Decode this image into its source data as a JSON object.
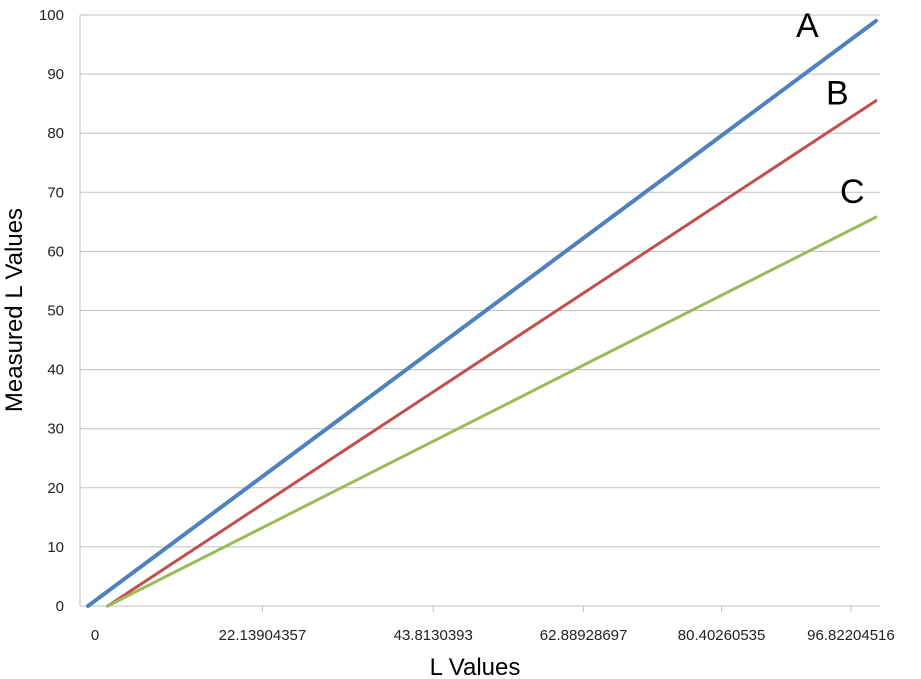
{
  "chart_data": {
    "type": "line",
    "xlabel": "L Values",
    "ylabel": "Measured L Values",
    "ylim": [
      0,
      100
    ],
    "yticks": [
      0,
      10,
      20,
      30,
      40,
      50,
      60,
      70,
      80,
      90,
      100
    ],
    "xlim": [
      0,
      100
    ],
    "xticks": [
      {
        "value": 0,
        "label": "0"
      },
      {
        "value": 22.13904357,
        "label": "22.13904357"
      },
      {
        "value": 43.8130393,
        "label": "43.8130393"
      },
      {
        "value": 62.88928697,
        "label": "62.88928697"
      },
      {
        "value": 80.40260535,
        "label": "80.40260535"
      },
      {
        "value": 96.82204516,
        "label": "96.82204516"
      }
    ],
    "grid": "horizontal",
    "legend": "none",
    "series": [
      {
        "name": "A",
        "color": "#4F81BD",
        "x": [
          0,
          100
        ],
        "y": [
          0,
          99
        ]
      },
      {
        "name": "B",
        "color": "#C0504D",
        "x": [
          2.5,
          100
        ],
        "y": [
          0,
          85.5
        ]
      },
      {
        "name": "C",
        "color": "#9BBB59",
        "x": [
          2.5,
          100
        ],
        "y": [
          0,
          65.8
        ]
      }
    ]
  }
}
